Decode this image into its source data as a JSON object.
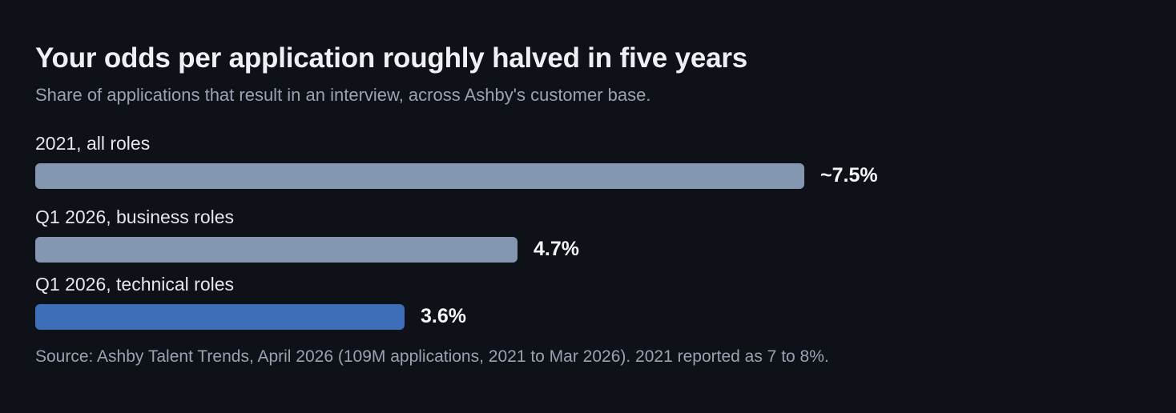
{
  "chart_data": {
    "type": "bar",
    "orientation": "horizontal",
    "title": "Your odds per application roughly halved in five years",
    "subtitle": "Share of applications that result in an interview, across Ashby's customer base.",
    "categories": [
      "2021, all roles",
      "Q1 2026, business roles",
      "Q1 2026, technical roles"
    ],
    "values": [
      7.5,
      4.7,
      3.6
    ],
    "value_labels": [
      "~7.5%",
      "4.7%",
      "3.6%"
    ],
    "colors": [
      "#8497b0",
      "#8497b0",
      "#3d6eb7"
    ],
    "source": "Source: Ashby Talent Trends, April 2026 (109M applications, 2021 to Mar 2026). 2021 reported as 7 to 8%.",
    "grid": false
  }
}
